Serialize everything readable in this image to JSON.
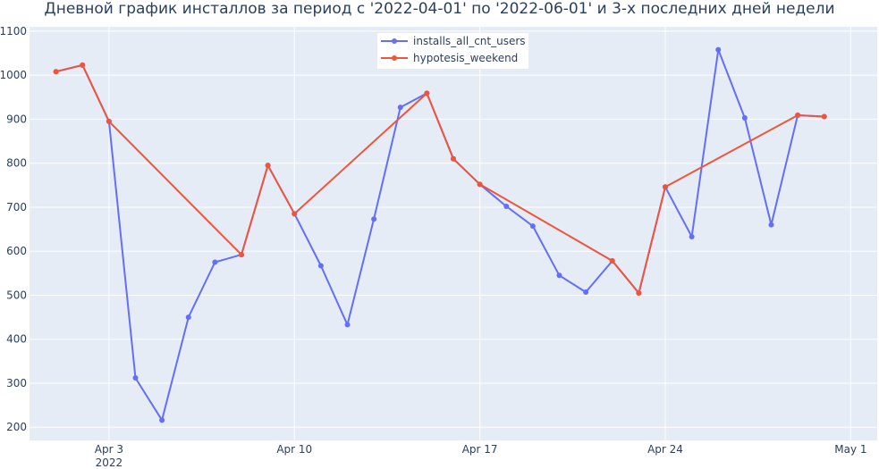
{
  "chart_data": {
    "type": "line",
    "title": "Дневной график инсталлов за период с '2022-04-01' по '2022-06-01' и 3-х последних дней недели",
    "xlabel": "",
    "ylabel": "",
    "x_range": [
      "2022-03-31",
      "2022-05-02"
    ],
    "ylim": [
      170,
      1110
    ],
    "y_ticks": [
      200,
      300,
      400,
      500,
      600,
      700,
      800,
      900,
      1000,
      1100
    ],
    "x_ticks": [
      {
        "date": "2022-04-03",
        "label": "Apr 3",
        "sublabel": "2022"
      },
      {
        "date": "2022-04-10",
        "label": "Apr 10",
        "sublabel": ""
      },
      {
        "date": "2022-04-17",
        "label": "Apr 17",
        "sublabel": ""
      },
      {
        "date": "2022-04-24",
        "label": "Apr 24",
        "sublabel": ""
      },
      {
        "date": "2022-05-01",
        "label": "May 1",
        "sublabel": ""
      }
    ],
    "grid": true,
    "legend_position": "top-center",
    "series": [
      {
        "name": "installs_all_cnt_users",
        "color": "#636efa",
        "points": [
          {
            "x": "2022-04-01",
            "y": 1008
          },
          {
            "x": "2022-04-02",
            "y": 1023
          },
          {
            "x": "2022-04-03",
            "y": 895
          },
          {
            "x": "2022-04-04",
            "y": 312
          },
          {
            "x": "2022-04-05",
            "y": 216
          },
          {
            "x": "2022-04-06",
            "y": 450
          },
          {
            "x": "2022-04-07",
            "y": 575
          },
          {
            "x": "2022-04-08",
            "y": 592
          },
          {
            "x": "2022-04-09",
            "y": 795
          },
          {
            "x": "2022-04-10",
            "y": 685
          },
          {
            "x": "2022-04-11",
            "y": 567
          },
          {
            "x": "2022-04-12",
            "y": 433
          },
          {
            "x": "2022-04-13",
            "y": 673
          },
          {
            "x": "2022-04-14",
            "y": 927
          },
          {
            "x": "2022-04-15",
            "y": 959
          },
          {
            "x": "2022-04-16",
            "y": 810
          },
          {
            "x": "2022-04-17",
            "y": 752
          },
          {
            "x": "2022-04-18",
            "y": 702
          },
          {
            "x": "2022-04-19",
            "y": 657
          },
          {
            "x": "2022-04-20",
            "y": 545
          },
          {
            "x": "2022-04-21",
            "y": 507
          },
          {
            "x": "2022-04-22",
            "y": 578
          },
          {
            "x": "2022-04-23",
            "y": 505
          },
          {
            "x": "2022-04-24",
            "y": 746
          },
          {
            "x": "2022-04-25",
            "y": 633
          },
          {
            "x": "2022-04-26",
            "y": 1058
          },
          {
            "x": "2022-04-27",
            "y": 903
          },
          {
            "x": "2022-04-28",
            "y": 660
          },
          {
            "x": "2022-04-29",
            "y": 909
          },
          {
            "x": "2022-04-30",
            "y": 906
          }
        ]
      },
      {
        "name": "hypotesis_weekend",
        "color": "#ef553b",
        "points": [
          {
            "x": "2022-04-01",
            "y": 1008
          },
          {
            "x": "2022-04-02",
            "y": 1023
          },
          {
            "x": "2022-04-03",
            "y": 895
          },
          {
            "x": "2022-04-08",
            "y": 592
          },
          {
            "x": "2022-04-09",
            "y": 795
          },
          {
            "x": "2022-04-10",
            "y": 685
          },
          {
            "x": "2022-04-15",
            "y": 959
          },
          {
            "x": "2022-04-16",
            "y": 810
          },
          {
            "x": "2022-04-17",
            "y": 752
          },
          {
            "x": "2022-04-22",
            "y": 578
          },
          {
            "x": "2022-04-23",
            "y": 505
          },
          {
            "x": "2022-04-24",
            "y": 746
          },
          {
            "x": "2022-04-29",
            "y": 909
          },
          {
            "x": "2022-04-30",
            "y": 906
          }
        ]
      }
    ]
  }
}
